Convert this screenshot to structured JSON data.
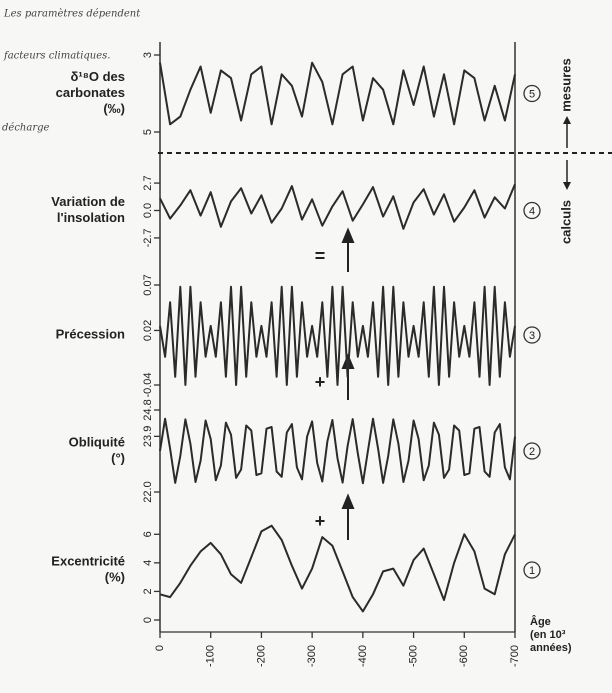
{
  "chart_data": [
    {
      "type": "line",
      "title": [
        "δ¹⁸O des",
        "carbonates",
        "(‰)"
      ],
      "marker": "5",
      "color": "#2b2b2b",
      "xlim": [
        0,
        -700
      ],
      "ylim": [
        5,
        3
      ],
      "yticks": [
        3,
        5
      ],
      "x": [
        0,
        -20,
        -40,
        -60,
        -80,
        -100,
        -120,
        -140,
        -160,
        -180,
        -200,
        -220,
        -240,
        -260,
        -280,
        -300,
        -320,
        -340,
        -360,
        -380,
        -400,
        -420,
        -440,
        -460,
        -480,
        -500,
        -520,
        -540,
        -560,
        -580,
        -600,
        -620,
        -640,
        -660,
        -680,
        -700
      ],
      "values": [
        3.2,
        4.8,
        4.6,
        3.9,
        3.3,
        4.5,
        3.4,
        3.6,
        4.7,
        3.5,
        3.3,
        4.8,
        3.5,
        3.8,
        4.6,
        3.2,
        3.7,
        4.8,
        3.5,
        3.3,
        4.7,
        3.6,
        3.9,
        4.8,
        3.4,
        4.3,
        3.3,
        4.6,
        3.5,
        4.8,
        3.4,
        3.6,
        4.7,
        3.8,
        4.7,
        3.5
      ]
    },
    {
      "type": "line",
      "title": [
        "Variation de",
        "l'insolation"
      ],
      "marker": "4",
      "color": "#2b2b2b",
      "xlim": [
        0,
        -700
      ],
      "ylim": [
        -3.2,
        3.2
      ],
      "yticks": [
        -2.7,
        {
          "value": 0,
          "label": "0.0"
        },
        2.7
      ],
      "x": [
        0,
        -20,
        -40,
        -60,
        -80,
        -100,
        -120,
        -140,
        -160,
        -180,
        -200,
        -220,
        -240,
        -260,
        -280,
        -300,
        -320,
        -340,
        -360,
        -380,
        -400,
        -420,
        -440,
        -460,
        -480,
        -500,
        -520,
        -540,
        -560,
        -580,
        -600,
        -620,
        -640,
        -660,
        -680,
        -700
      ],
      "values": [
        1.2,
        -0.8,
        0.5,
        2.0,
        -0.5,
        1.8,
        -1.6,
        0.9,
        2.2,
        -0.3,
        1.5,
        -1.2,
        0.2,
        2.4,
        -0.9,
        1.1,
        -1.5,
        0.4,
        1.9,
        -1.0,
        0.6,
        2.3,
        -0.6,
        1.4,
        -1.8,
        0.8,
        2.1,
        -0.4,
        1.6,
        -1.1,
        0.3,
        2.0,
        -0.7,
        1.3,
        0.2,
        2.6
      ]
    },
    {
      "type": "line",
      "title": [
        "Précession"
      ],
      "marker": "3",
      "color": "#2b2b2b",
      "xlim": [
        0,
        -700
      ],
      "ylim": [
        -0.04,
        0.07
      ],
      "yticks": [
        -0.04,
        0.02,
        0.07
      ],
      "x": [
        0,
        -10,
        -20,
        -30,
        -40,
        -50,
        -60,
        -70,
        -80,
        -90,
        -100,
        -110,
        -120,
        -130,
        -140,
        -150,
        -160,
        -170,
        -180,
        -190,
        -200,
        -210,
        -220,
        -230,
        -240,
        -250,
        -260,
        -270,
        -280,
        -290,
        -300,
        -310,
        -320,
        -330,
        -340,
        -350,
        -360,
        -370,
        -380,
        -390,
        -400,
        -410,
        -420,
        -430,
        -440,
        -450,
        -460,
        -470,
        -480,
        -490,
        -500,
        -510,
        -520,
        -530,
        -540,
        -550,
        -560,
        -570,
        -580,
        -590,
        -600,
        -610,
        -620,
        -630,
        -640,
        -650,
        -660,
        -670,
        -680,
        -690,
        -700
      ],
      "values": [
        0.025,
        -0.009,
        0.051,
        -0.031,
        0.068,
        -0.04,
        0.068,
        -0.031,
        0.051,
        -0.009,
        0.025,
        -0.009,
        0.051,
        -0.031,
        0.068,
        -0.04,
        0.068,
        -0.031,
        0.051,
        -0.009,
        0.025,
        -0.009,
        0.051,
        -0.031,
        0.068,
        -0.04,
        0.068,
        -0.031,
        0.051,
        -0.009,
        0.025,
        -0.009,
        0.051,
        -0.031,
        0.068,
        -0.04,
        0.068,
        -0.031,
        0.051,
        -0.009,
        0.025,
        -0.009,
        0.051,
        -0.031,
        0.068,
        -0.04,
        0.068,
        -0.031,
        0.051,
        -0.009,
        0.025,
        -0.009,
        0.051,
        -0.031,
        0.068,
        -0.04,
        0.068,
        -0.031,
        0.051,
        -0.009,
        0.025,
        -0.009,
        0.051,
        -0.031,
        0.068,
        -0.04,
        0.068,
        -0.031,
        0.051,
        -0.009,
        0.025
      ]
    },
    {
      "type": "line",
      "title": [
        "Obliquité",
        "(°)"
      ],
      "marker": "2",
      "color": "#2b2b2b",
      "xlim": [
        0,
        -700
      ],
      "ylim": [
        22,
        24.8
      ],
      "yticks": [
        {
          "value": 22,
          "label": "22.0"
        },
        23.9,
        24.8
      ],
      "x": [
        0,
        -10,
        -20,
        -30,
        -40,
        -50,
        -60,
        -70,
        -80,
        -90,
        -100,
        -110,
        -120,
        -130,
        -140,
        -150,
        -160,
        -170,
        -180,
        -190,
        -200,
        -210,
        -220,
        -230,
        -240,
        -250,
        -260,
        -270,
        -280,
        -290,
        -300,
        -310,
        -320,
        -330,
        -340,
        -350,
        -360,
        -370,
        -380,
        -390,
        -400,
        -410,
        -420,
        -430,
        -440,
        -450,
        -460,
        -470,
        -480,
        -490,
        -500,
        -510,
        -520,
        -530,
        -540,
        -550,
        -560,
        -570,
        -580,
        -590,
        -600,
        -610,
        -620,
        -630,
        -640,
        -650,
        -660,
        -670,
        -680,
        -690,
        -700
      ],
      "values": [
        23.4,
        24.5,
        23.48,
        22.31,
        23.23,
        24.48,
        23.65,
        22.34,
        23.07,
        24.44,
        23.81,
        22.4,
        22.91,
        24.37,
        23.96,
        22.48,
        22.77,
        24.27,
        24.1,
        22.58,
        22.64,
        24.16,
        24.22,
        22.7,
        22.52,
        24.03,
        24.32,
        22.84,
        22.43,
        23.89,
        24.41,
        22.99,
        22.36,
        23.73,
        24.46,
        23.15,
        22.32,
        23.57,
        24.49,
        23.32,
        22.3,
        23.4,
        24.5,
        23.48,
        22.31,
        23.23,
        24.48,
        23.65,
        22.34,
        23.07,
        24.44,
        23.81,
        22.4,
        22.91,
        24.37,
        23.96,
        22.48,
        22.77,
        24.27,
        24.1,
        22.58,
        22.64,
        24.16,
        24.22,
        22.7,
        22.52,
        24.03,
        24.32,
        22.84,
        22.43,
        23.89
      ]
    },
    {
      "type": "line",
      "title": [
        "Excentricité",
        "(%)"
      ],
      "marker": "1",
      "color": "#2b2b2b",
      "xlim": [
        0,
        -700
      ],
      "ylim": [
        0,
        7
      ],
      "yticks": [
        0,
        2,
        4,
        6
      ],
      "xticks": [
        0,
        -100,
        -200,
        -300,
        -400,
        -500,
        -600,
        -700
      ],
      "xlabel": [
        "Âge",
        "(en 10³",
        "années)"
      ],
      "x": [
        0,
        -20,
        -40,
        -60,
        -80,
        -100,
        -120,
        -140,
        -160,
        -180,
        -200,
        -220,
        -240,
        -260,
        -280,
        -300,
        -320,
        -340,
        -360,
        -380,
        -400,
        -420,
        -440,
        -460,
        -480,
        -500,
        -520,
        -540,
        -560,
        -580,
        -600,
        -620,
        -640,
        -660,
        -680,
        -700
      ],
      "values": [
        1.8,
        1.6,
        2.6,
        3.8,
        4.8,
        5.4,
        4.6,
        3.2,
        2.6,
        4.4,
        6.2,
        6.6,
        5.6,
        3.8,
        2.2,
        3.6,
        5.8,
        5.2,
        3.4,
        1.6,
        0.6,
        1.8,
        3.4,
        3.6,
        2.4,
        4.2,
        5.0,
        3.2,
        1.4,
        4.0,
        6.0,
        4.8,
        2.2,
        1.8,
        4.6,
        6.0
      ]
    }
  ],
  "annotations": {
    "measures": "mesures",
    "calcs": "calculs",
    "equals": "=",
    "plus": [
      "+",
      "+"
    ],
    "handwriting": [
      "Les paramètres dépendent",
      "facteurs climatiques.",
      "décharge"
    ]
  }
}
